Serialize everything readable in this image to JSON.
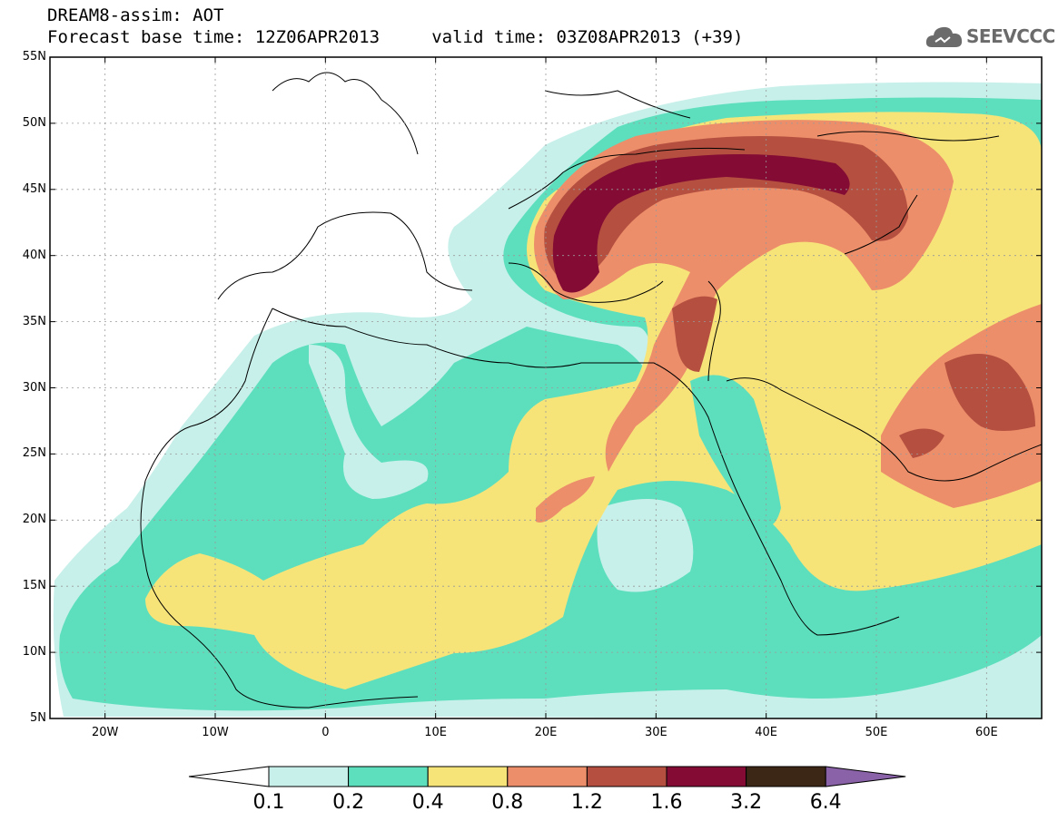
{
  "header": {
    "title": "DREAM8-assim: AOT",
    "subtitle": "Forecast base time: 12Z06APR2013     valid time: 03Z08APR2013 (+39)"
  },
  "logo": {
    "text": "SEEVCCC",
    "icon": "cloud-icon"
  },
  "map": {
    "lon_range": [
      -25,
      65
    ],
    "lat_range": [
      5,
      55
    ],
    "lat_labels": [
      "55N",
      "50N",
      "45N",
      "40N",
      "35N",
      "30N",
      "25N",
      "20N",
      "15N",
      "10N",
      "5N"
    ],
    "lon_labels": [
      "20W",
      "10W",
      "0",
      "10E",
      "20E",
      "30E",
      "40E",
      "50E",
      "60E"
    ],
    "grid": true
  },
  "colorbar": {
    "labels": [
      "0.1",
      "0.2",
      "0.4",
      "0.8",
      "1.2",
      "1.6",
      "3.2",
      "6.4"
    ],
    "colors": [
      "#ffffff",
      "#c7f0ea",
      "#5ddfbd",
      "#f7e479",
      "#ec8e6a",
      "#b55040",
      "#830b34",
      "#3c2616",
      "#8a62a8"
    ]
  },
  "palette": {
    "c01": "#c7f0ea",
    "c02": "#5ddfbd",
    "c04": "#f7e479",
    "c08": "#ec8e6a",
    "c12": "#b55040",
    "c16": "#830b34"
  }
}
